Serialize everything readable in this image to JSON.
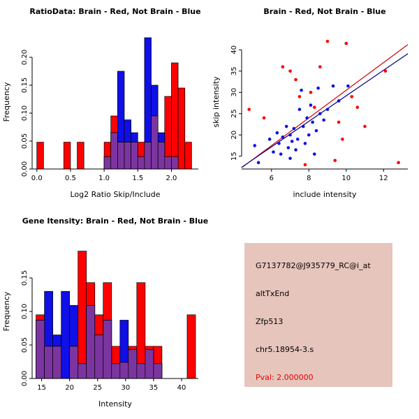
{
  "colors": {
    "red": "#ff0000",
    "blue": "#0f0fe6",
    "overlap": "#7c35a0",
    "line_red": "#d00000",
    "line_blue": "#00008b",
    "axis": "#000000",
    "info_bg": "#e6c5bc",
    "pval_red": "#e50000"
  },
  "info_panel": {
    "lines": [
      "G7137782@J935779_RC@i_at",
      "altTxEnd",
      "Zfp513",
      "chr5.18954-3.s"
    ],
    "pval": "Pval: 2.000000"
  },
  "chart_data": [
    {
      "id": "ratio-histogram",
      "type": "bar",
      "subtype": "overlaid-histogram",
      "title": "RatioData: Brain - Red, Not Brain - Blue",
      "xlabel": "Log2 Ratio Skip/Include",
      "ylabel": "Frequency",
      "xlim": [
        -0.07,
        2.4
      ],
      "ylim": [
        0,
        0.24
      ],
      "xticks": [
        "0.0",
        "0.5",
        "1.0",
        "1.5",
        "2.0"
      ],
      "yticks": [
        "0.00",
        "0.05",
        "0.10",
        "0.15",
        "0.20"
      ],
      "series": [
        {
          "name": "Brain",
          "color_key": "red",
          "bin_start": 0.0,
          "bin_width": 0.1,
          "values": [
            0.048,
            0,
            0,
            0,
            0.048,
            0,
            0.048,
            0,
            0,
            0,
            0.048,
            0.095,
            0.048,
            0.048,
            0.048,
            0.048,
            0.048,
            0.095,
            0.048,
            0.13,
            0.19,
            0.145,
            0.048,
            0
          ]
        },
        {
          "name": "Not Brain",
          "color_key": "blue",
          "bin_start": 1.0,
          "bin_width": 0.1,
          "values": [
            0.022,
            0.065,
            0.175,
            0.088,
            0.065,
            0.022,
            0.235,
            0.15,
            0.065,
            0.022,
            0.022
          ]
        }
      ]
    },
    {
      "id": "intensity-scatter",
      "type": "scatter",
      "title": "Brain - Red, Not Brain - Blue",
      "xlabel": "include intensity",
      "ylabel": "skip intensity",
      "xlim": [
        4.4,
        13.3
      ],
      "ylim": [
        12,
        43.5
      ],
      "xticks": [
        "6",
        "8",
        "10",
        "12"
      ],
      "yticks": [
        "15",
        "20",
        "25",
        "30",
        "35",
        "40"
      ],
      "series": [
        {
          "name": "Brain",
          "color_key": "red",
          "points": [
            [
              4.8,
              26
            ],
            [
              5.6,
              24
            ],
            [
              6.6,
              36
            ],
            [
              7.0,
              35
            ],
            [
              7.3,
              33
            ],
            [
              7.5,
              29
            ],
            [
              7.8,
              13
            ],
            [
              8.1,
              30
            ],
            [
              8.3,
              26.5
            ],
            [
              8.6,
              36
            ],
            [
              9.0,
              42
            ],
            [
              9.4,
              14
            ],
            [
              9.6,
              23
            ],
            [
              9.8,
              19
            ],
            [
              10.0,
              41.5
            ],
            [
              10.3,
              29
            ],
            [
              10.6,
              26.5
            ],
            [
              11.0,
              22
            ],
            [
              12.1,
              35
            ],
            [
              12.8,
              13.5
            ]
          ]
        },
        {
          "name": "Not Brain",
          "color_key": "blue",
          "points": [
            [
              5.1,
              17.5
            ],
            [
              5.3,
              13.5
            ],
            [
              5.9,
              19
            ],
            [
              6.1,
              16
            ],
            [
              6.3,
              20.5
            ],
            [
              6.4,
              18
            ],
            [
              6.5,
              15.5
            ],
            [
              6.6,
              19.5
            ],
            [
              6.8,
              22
            ],
            [
              6.9,
              17
            ],
            [
              7.0,
              20
            ],
            [
              7.0,
              14.5
            ],
            [
              7.1,
              18.5
            ],
            [
              7.2,
              21.5
            ],
            [
              7.3,
              16.5
            ],
            [
              7.4,
              19
            ],
            [
              7.5,
              26
            ],
            [
              7.6,
              30.5
            ],
            [
              7.7,
              22
            ],
            [
              7.8,
              18
            ],
            [
              7.9,
              24
            ],
            [
              8.0,
              20
            ],
            [
              8.1,
              27
            ],
            [
              8.2,
              23
            ],
            [
              8.3,
              15.5
            ],
            [
              8.4,
              21
            ],
            [
              8.5,
              31
            ],
            [
              8.6,
              25
            ],
            [
              8.8,
              23.5
            ],
            [
              9.0,
              26
            ],
            [
              9.3,
              31.5
            ],
            [
              9.6,
              28
            ],
            [
              10.1,
              31.5
            ]
          ]
        }
      ],
      "lines": [
        {
          "name": "brain-fit",
          "color_key": "line_red",
          "intercept": -2.0,
          "slope": 3.25
        },
        {
          "name": "notbrain-fit",
          "color_key": "line_blue",
          "intercept": -0.8,
          "slope": 3.0
        }
      ]
    },
    {
      "id": "gene-intensity-histogram",
      "type": "bar",
      "subtype": "overlaid-histogram",
      "title": "Gene Itensity: Brain - Red, Not Brain - Blue",
      "xlabel": "Intensity",
      "ylabel": "Frequency",
      "xlim": [
        13.3,
        43
      ],
      "ylim": [
        0,
        0.2
      ],
      "xticks": [
        "15",
        "20",
        "25",
        "30",
        "35",
        "40"
      ],
      "yticks": [
        "0.00",
        "0.05",
        "0.10",
        "0.15"
      ],
      "series": [
        {
          "name": "Brain",
          "color_key": "red",
          "bin_start": 14,
          "bin_width": 1.5,
          "values": [
            0.095,
            0.048,
            0.048,
            0,
            0.048,
            0.19,
            0.143,
            0.095,
            0.143,
            0.048,
            0.024,
            0.048,
            0.143,
            0.048,
            0.048,
            0,
            0,
            0,
            0.095
          ]
        },
        {
          "name": "Not Brain",
          "color_key": "blue",
          "bin_start": 14,
          "bin_width": 1.5,
          "values": [
            0.087,
            0.13,
            0.065,
            0.13,
            0.109,
            0.022,
            0.109,
            0.065,
            0.087,
            0.022,
            0.087,
            0.043,
            0.022,
            0.043,
            0.022
          ]
        }
      ]
    }
  ]
}
